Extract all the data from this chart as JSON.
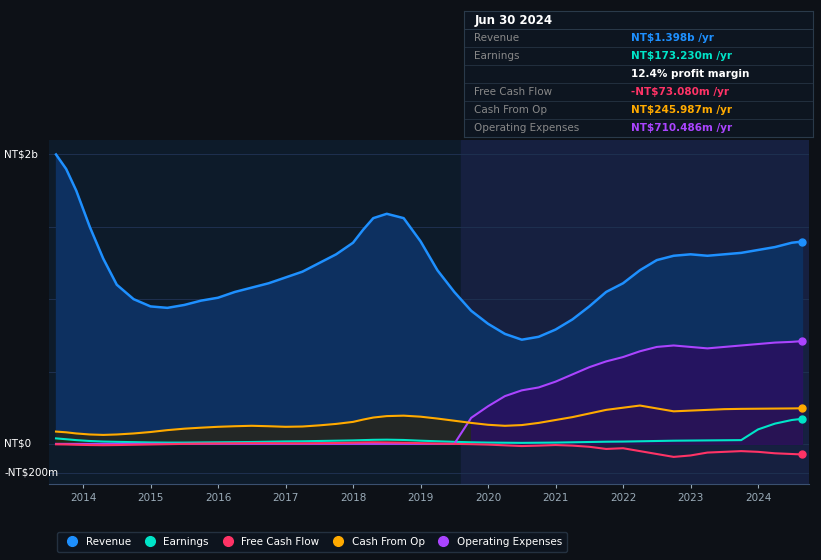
{
  "bg_color": "#0d1117",
  "plot_bg_color": "#0d1b2a",
  "grid_color": "#1e3050",
  "highlight_color": "#162040",
  "highlight_start": 2019.6,
  "xlim": [
    2013.5,
    2024.75
  ],
  "ylim": [
    -280,
    2100
  ],
  "y_gridlines": [
    -200,
    0,
    500,
    1000,
    1500,
    2000
  ],
  "xtick_years": [
    2014,
    2015,
    2016,
    2017,
    2018,
    2019,
    2020,
    2021,
    2022,
    2023,
    2024
  ],
  "ylabel_top": "NT$2b",
  "ylabel_zero": "NT$0",
  "ylabel_bot": "-NT$200m",
  "y_top_val": 2000,
  "y_zero_val": 0,
  "y_bot_val": -200,
  "info_box": {
    "title": "Jun 30 2024",
    "rows": [
      {
        "label": "Revenue",
        "value": "NT$1.398b /yr",
        "lcolor": "#888888",
        "vcolor": "#1e90ff"
      },
      {
        "label": "Earnings",
        "value": "NT$173.230m /yr",
        "lcolor": "#888888",
        "vcolor": "#00e5c8"
      },
      {
        "label": "",
        "value": "12.4% profit margin",
        "lcolor": "#888888",
        "vcolor": "#ffffff"
      },
      {
        "label": "Free Cash Flow",
        "value": "-NT$73.080m /yr",
        "lcolor": "#888888",
        "vcolor": "#ff3366"
      },
      {
        "label": "Cash From Op",
        "value": "NT$245.987m /yr",
        "lcolor": "#888888",
        "vcolor": "#ffaa00"
      },
      {
        "label": "Operating Expenses",
        "value": "NT$710.486m /yr",
        "lcolor": "#888888",
        "vcolor": "#aa44ff"
      }
    ]
  },
  "series_colors": {
    "revenue_line": "#1e90ff",
    "revenue_fill": "#0d3060",
    "earnings_line": "#00e5c8",
    "earnings_fill": "#003a30",
    "fcf_line": "#ff3366",
    "cop_line": "#ffaa00",
    "cop_fill": "#332200",
    "opex_line": "#aa44ff",
    "opex_fill": "#2a1060"
  },
  "x": [
    2013.6,
    2013.75,
    2013.9,
    2014.1,
    2014.3,
    2014.5,
    2014.75,
    2015.0,
    2015.25,
    2015.5,
    2015.75,
    2016.0,
    2016.25,
    2016.5,
    2016.75,
    2017.0,
    2017.25,
    2017.5,
    2017.75,
    2018.0,
    2018.15,
    2018.3,
    2018.5,
    2018.75,
    2019.0,
    2019.25,
    2019.5,
    2019.75,
    2020.0,
    2020.25,
    2020.5,
    2020.75,
    2021.0,
    2021.25,
    2021.5,
    2021.75,
    2022.0,
    2022.25,
    2022.5,
    2022.75,
    2023.0,
    2023.25,
    2023.5,
    2023.75,
    2024.0,
    2024.25,
    2024.5,
    2024.65
  ],
  "revenue": [
    2000,
    1900,
    1750,
    1500,
    1280,
    1100,
    1000,
    950,
    940,
    960,
    990,
    1010,
    1050,
    1080,
    1110,
    1150,
    1190,
    1250,
    1310,
    1390,
    1480,
    1560,
    1590,
    1560,
    1400,
    1200,
    1050,
    920,
    830,
    760,
    720,
    740,
    790,
    860,
    950,
    1050,
    1110,
    1200,
    1270,
    1300,
    1310,
    1300,
    1310,
    1320,
    1340,
    1360,
    1390,
    1398
  ],
  "earnings": [
    38,
    32,
    26,
    20,
    16,
    14,
    12,
    10,
    9,
    9,
    10,
    11,
    12,
    13,
    15,
    17,
    18,
    20,
    22,
    24,
    26,
    28,
    29,
    27,
    22,
    18,
    14,
    11,
    9,
    8,
    7,
    8,
    9,
    11,
    13,
    15,
    16,
    18,
    20,
    22,
    23,
    24,
    25,
    26,
    100,
    140,
    165,
    173
  ],
  "fcf": [
    -3,
    -4,
    -6,
    -8,
    -9,
    -8,
    -6,
    -4,
    -2,
    0,
    2,
    3,
    4,
    5,
    5,
    4,
    4,
    5,
    6,
    8,
    10,
    11,
    10,
    8,
    5,
    2,
    0,
    -2,
    -5,
    -10,
    -15,
    -12,
    -8,
    -12,
    -20,
    -35,
    -30,
    -50,
    -70,
    -90,
    -80,
    -60,
    -55,
    -50,
    -55,
    -65,
    -70,
    -73
  ],
  "cashfromop": [
    85,
    80,
    72,
    65,
    62,
    65,
    72,
    82,
    95,
    105,
    112,
    118,
    122,
    125,
    122,
    118,
    120,
    128,
    138,
    152,
    168,
    182,
    192,
    195,
    188,
    175,
    160,
    145,
    132,
    125,
    130,
    145,
    165,
    185,
    210,
    235,
    250,
    265,
    245,
    225,
    230,
    235,
    240,
    242,
    243,
    244,
    245,
    246
  ],
  "opex": [
    0,
    0,
    0,
    0,
    0,
    0,
    0,
    0,
    0,
    0,
    0,
    0,
    0,
    0,
    0,
    0,
    0,
    0,
    0,
    0,
    0,
    0,
    0,
    0,
    0,
    0,
    0,
    180,
    260,
    330,
    370,
    390,
    430,
    480,
    530,
    570,
    600,
    640,
    670,
    680,
    670,
    660,
    670,
    680,
    690,
    700,
    705,
    710
  ],
  "legend": [
    {
      "label": "Revenue",
      "color": "#1e90ff"
    },
    {
      "label": "Earnings",
      "color": "#00e5c8"
    },
    {
      "label": "Free Cash Flow",
      "color": "#ff3366"
    },
    {
      "label": "Cash From Op",
      "color": "#ffaa00"
    },
    {
      "label": "Operating Expenses",
      "color": "#aa44ff"
    }
  ]
}
